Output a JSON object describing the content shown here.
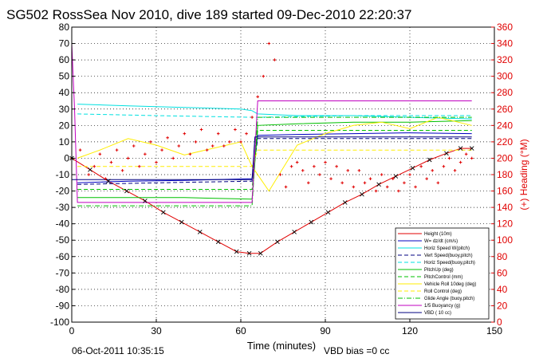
{
  "chart_data": {
    "type": "line",
    "title": "SG502 RossSea Nov 2010, dive 189 started 09-Dec-2010 22:20:37",
    "xlabel": "Time (minutes)",
    "ylabel_right": "(+) Heading (°M)",
    "xlim": [
      0,
      150
    ],
    "ylim": [
      -100,
      80
    ],
    "ylim_right": [
      0,
      360
    ],
    "x_ticks": [
      0,
      30,
      60,
      90,
      120,
      150
    ],
    "y_ticks": [
      -100,
      -90,
      -80,
      -70,
      -60,
      -50,
      -40,
      -30,
      -20,
      -10,
      0,
      10,
      20,
      30,
      40,
      50,
      60,
      70,
      80
    ],
    "y_ticks_right": [
      0,
      20,
      40,
      60,
      80,
      100,
      120,
      140,
      160,
      180,
      200,
      220,
      240,
      260,
      280,
      300,
      320,
      340,
      360
    ],
    "grid": true,
    "legend_position": "bottom-right",
    "footer_left": "06-Oct-2011 10:35:15",
    "footer_right": "VBD bias =0 cc",
    "series": [
      {
        "name": "Height (10m)",
        "color": "#e00000",
        "style": "solid",
        "x": [
          0,
          6.5,
          13,
          19.5,
          26,
          32.5,
          39,
          45.5,
          52,
          58.5,
          63,
          67,
          73,
          79,
          85,
          91,
          97,
          103,
          109,
          115,
          121,
          127,
          133,
          138,
          142
        ],
        "y": [
          0,
          -7,
          -14,
          -20,
          -26,
          -33,
          -39,
          -45,
          -51,
          -57,
          -58,
          -58,
          -51,
          -45,
          -39,
          -33,
          -27,
          -22,
          -16,
          -11,
          -6,
          -1,
          3,
          6,
          6
        ]
      },
      {
        "name": "W= dz/dt (cm/s)",
        "color": "#0000c0",
        "style": "solid",
        "x": [
          2,
          20,
          40,
          64,
          66,
          80,
          100,
          120,
          142
        ],
        "y": [
          -15,
          -14,
          -13.5,
          -12.5,
          14,
          14.5,
          15,
          15.5,
          15
        ]
      },
      {
        "name": "Horiz Speed W(pitch)",
        "color": "#00e0e0",
        "style": "solid",
        "x": [
          2,
          20,
          40,
          60,
          64,
          66,
          80,
          100,
          120,
          142
        ],
        "y": [
          33,
          32,
          31,
          30,
          29,
          27,
          26,
          26,
          25,
          24
        ]
      },
      {
        "name": "Vert Speed(buoy,pitch)",
        "color": "#000080",
        "style": "dashed",
        "x": [
          2,
          30,
          64,
          66,
          100,
          142
        ],
        "y": [
          -16,
          -15,
          -14,
          12,
          12,
          12
        ]
      },
      {
        "name": "Horiz Speed(buoy,pitch)",
        "color": "#00e0e0",
        "style": "dashed",
        "x": [
          2,
          30,
          64,
          66,
          100,
          142
        ],
        "y": [
          27,
          26,
          25,
          25,
          26,
          26
        ]
      },
      {
        "name": "PitchUp (deg)",
        "color": "#00c000",
        "style": "solid",
        "x": [
          2,
          20,
          40,
          64,
          66,
          80,
          100,
          120,
          142
        ],
        "y": [
          -24,
          -24,
          -24,
          -25,
          20,
          21,
          22,
          22,
          23
        ]
      },
      {
        "name": "PitchControl (mm)",
        "color": "#00c000",
        "style": "dashed",
        "x": [
          2,
          64,
          66,
          142
        ],
        "y": [
          -19,
          -19,
          17,
          17
        ]
      },
      {
        "name": "Vehicle Roll 10deg (deg)",
        "color": "#ffee00",
        "style": "solid",
        "x": [
          2,
          10,
          20,
          30,
          40,
          50,
          60,
          64,
          70,
          80,
          90,
          100,
          110,
          120,
          130,
          142
        ],
        "y": [
          0,
          5,
          12,
          8,
          2,
          6,
          10,
          -5,
          -20,
          8,
          15,
          20,
          22,
          18,
          25,
          20
        ]
      },
      {
        "name": "Roll Control (deg)",
        "color": "#ffee00",
        "style": "dashed",
        "x": [
          2,
          64,
          66,
          142
        ],
        "y": [
          -5,
          -5,
          5,
          5
        ]
      },
      {
        "name": "Glide Angle (buoy,pitch)",
        "color": "#00c000",
        "style": "dashdot",
        "x": [
          2,
          64,
          66,
          142
        ],
        "y": [
          -29,
          -29,
          25,
          25
        ]
      },
      {
        "name": "1/5 Buoyancy (g)",
        "color": "#c000c0",
        "style": "solid",
        "x": [
          0,
          1,
          2,
          5,
          64,
          66,
          142
        ],
        "y": [
          70,
          30,
          -27,
          -27,
          -27,
          35,
          35
        ]
      },
      {
        "name": "VBD ( 10 cc)",
        "color": "#000080",
        "style": "solid",
        "x": [
          0,
          64,
          65,
          142
        ],
        "y": [
          -13,
          -13,
          13,
          13
        ]
      }
    ],
    "heading": {
      "name": "(+) Heading (°M)",
      "color": "#e00000",
      "x": [
        0,
        3,
        6,
        8,
        10,
        12,
        14,
        16,
        18,
        20,
        22,
        24,
        26,
        28,
        30,
        32,
        34,
        36,
        38,
        40,
        42,
        44,
        46,
        48,
        50,
        52,
        54,
        56,
        58,
        60,
        62,
        64,
        66,
        68,
        70,
        72,
        74,
        76,
        78,
        80,
        82,
        84,
        86,
        88,
        90,
        92,
        94,
        96,
        98,
        100,
        102,
        104,
        106,
        108,
        110,
        112,
        114,
        116,
        118,
        120,
        122,
        124,
        126,
        128,
        130,
        132,
        134,
        136,
        138,
        140,
        142
      ],
      "y": [
        200,
        210,
        180,
        190,
        205,
        175,
        195,
        210,
        185,
        200,
        215,
        190,
        205,
        220,
        195,
        210,
        225,
        200,
        215,
        230,
        205,
        220,
        235,
        210,
        215,
        230,
        215,
        220,
        235,
        220,
        230,
        250,
        275,
        300,
        340,
        320,
        180,
        165,
        190,
        195,
        185,
        170,
        190,
        180,
        195,
        175,
        190,
        170,
        185,
        165,
        185,
        170,
        175,
        160,
        180,
        165,
        175,
        160,
        170,
        180,
        165,
        190,
        175,
        185,
        170,
        190,
        200,
        185,
        195,
        205,
        200
      ]
    }
  }
}
